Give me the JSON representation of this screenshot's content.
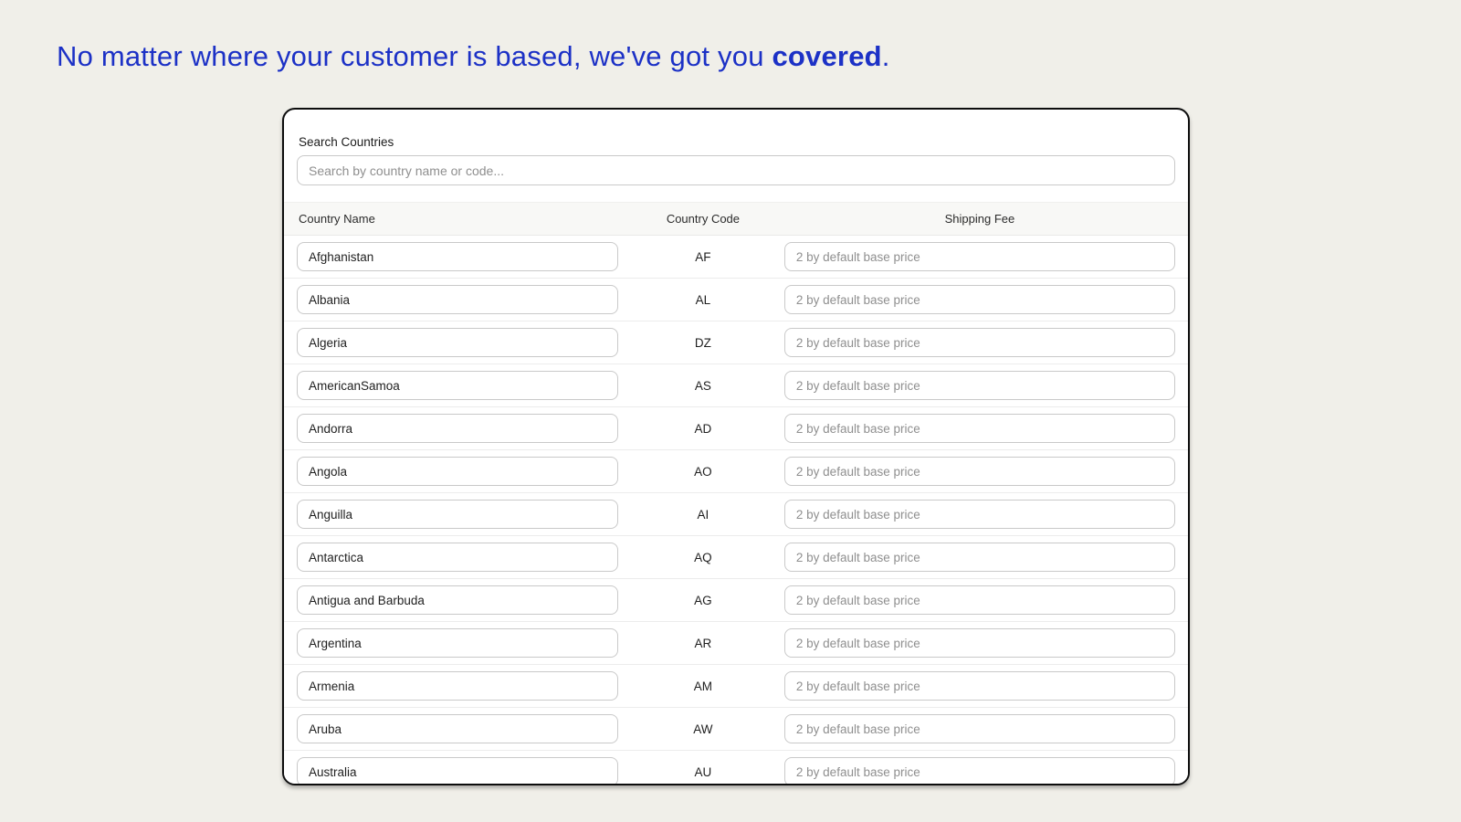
{
  "page": {
    "background_color": "#f0efe9"
  },
  "headline": {
    "prefix": "No matter where your customer is based, we've got you ",
    "bold": "covered",
    "suffix": ".",
    "color": "#1c31c6"
  },
  "panel": {
    "search_label": "Search Countries",
    "search_placeholder": "Search by country name or code...",
    "columns": [
      "Country Name",
      "Country Code",
      "Shipping Fee"
    ],
    "shipping_fee_placeholder": "2 by default base price",
    "rows": [
      {
        "name": "Afghanistan",
        "code": "AF"
      },
      {
        "name": "Albania",
        "code": "AL"
      },
      {
        "name": "Algeria",
        "code": "DZ"
      },
      {
        "name": "AmericanSamoa",
        "code": "AS"
      },
      {
        "name": "Andorra",
        "code": "AD"
      },
      {
        "name": "Angola",
        "code": "AO"
      },
      {
        "name": "Anguilla",
        "code": "AI"
      },
      {
        "name": "Antarctica",
        "code": "AQ"
      },
      {
        "name": "Antigua and Barbuda",
        "code": "AG"
      },
      {
        "name": "Argentina",
        "code": "AR"
      },
      {
        "name": "Armenia",
        "code": "AM"
      },
      {
        "name": "Aruba",
        "code": "AW"
      },
      {
        "name": "Australia",
        "code": "AU"
      }
    ]
  }
}
